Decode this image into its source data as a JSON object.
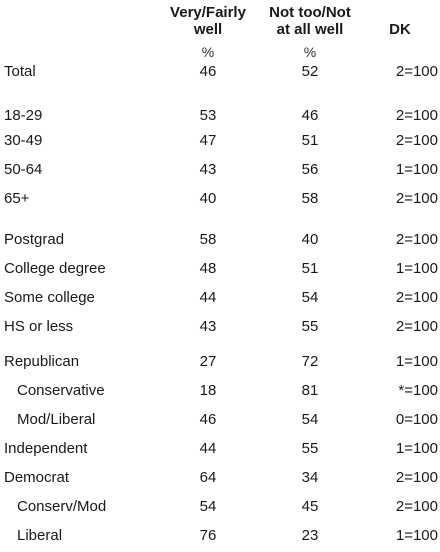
{
  "headers": {
    "col1": "Very/Fairly\nwell",
    "col2": "Not too/Not\nat all well",
    "col3": "DK"
  },
  "units": {
    "col1": "%",
    "col2": "%"
  },
  "rows": [
    {
      "label": "Total",
      "v1": "46",
      "v2": "52",
      "v3": "2=100",
      "indent": false
    },
    {
      "label": "18-29",
      "v1": "53",
      "v2": "46",
      "v3": "2=100",
      "indent": false
    },
    {
      "label": "30-49",
      "v1": "47",
      "v2": "51",
      "v3": "2=100",
      "indent": false
    },
    {
      "label": "50-64",
      "v1": "43",
      "v2": "56",
      "v3": "1=100",
      "indent": false
    },
    {
      "label": "65+",
      "v1": "40",
      "v2": "58",
      "v3": "2=100",
      "indent": false
    },
    {
      "label": "Postgrad",
      "v1": "58",
      "v2": "40",
      "v3": "2=100",
      "indent": false
    },
    {
      "label": "College degree",
      "v1": "48",
      "v2": "51",
      "v3": "1=100",
      "indent": false
    },
    {
      "label": "Some college",
      "v1": "44",
      "v2": "54",
      "v3": "2=100",
      "indent": false
    },
    {
      "label": "HS or less",
      "v1": "43",
      "v2": "55",
      "v3": "2=100",
      "indent": false
    },
    {
      "label": "Republican",
      "v1": "27",
      "v2": "72",
      "v3": "1=100",
      "indent": false
    },
    {
      "label": "Conservative",
      "v1": "18",
      "v2": "81",
      "v3": "*=100",
      "indent": true
    },
    {
      "label": "Mod/Liberal",
      "v1": "46",
      "v2": "54",
      "v3": "0=100",
      "indent": true
    },
    {
      "label": "Independent",
      "v1": "44",
      "v2": "55",
      "v3": "1=100",
      "indent": false
    },
    {
      "label": "Democrat",
      "v1": "64",
      "v2": "34",
      "v3": "2=100",
      "indent": false
    },
    {
      "label": "Conserv/Mod",
      "v1": "54",
      "v2": "45",
      "v3": "2=100",
      "indent": true
    },
    {
      "label": "Liberal",
      "v1": "76",
      "v2": "23",
      "v3": "1=100",
      "indent": true
    }
  ]
}
